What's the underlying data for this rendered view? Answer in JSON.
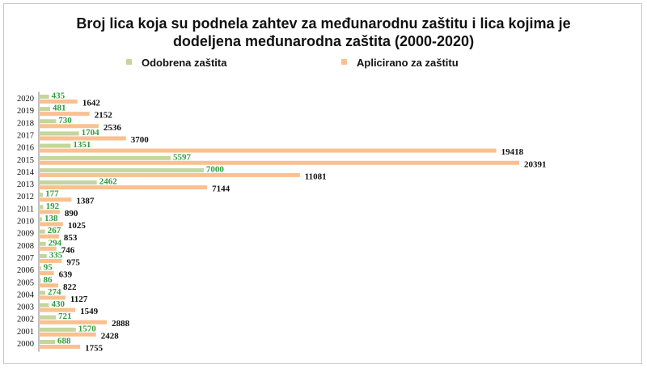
{
  "chart_data": {
    "type": "bar",
    "orientation": "horizontal",
    "title_line1": "Broj lica koja su podnela zahtev za međunarodnu zaštitu i lica kojima je",
    "title_line2": "dodeljena međunarodna zaštita (2000-2020)",
    "categories": [
      "2020",
      "2019",
      "2018",
      "2017",
      "2016",
      "2015",
      "2014",
      "2013",
      "2012",
      "2011",
      "2010",
      "2009",
      "2008",
      "2007",
      "2006",
      "2005",
      "2004",
      "2003",
      "2002",
      "2001",
      "2000"
    ],
    "series": [
      {
        "name": "Odobrena zaštita",
        "color": "#c3d69b",
        "label_color": "#2e9e3e",
        "values": [
          435,
          481,
          730,
          1704,
          1351,
          5597,
          7000,
          2462,
          177,
          192,
          138,
          267,
          294,
          335,
          95,
          86,
          274,
          430,
          721,
          1570,
          688
        ]
      },
      {
        "name": "Aplicirano za zaštitu",
        "color": "#fac090",
        "label_color": "#111111",
        "values": [
          1642,
          2152,
          2536,
          3700,
          19418,
          20391,
          11081,
          7144,
          1387,
          890,
          1025,
          853,
          746,
          975,
          639,
          822,
          1127,
          1549,
          2888,
          2428,
          1755
        ]
      }
    ],
    "xlim": [
      0,
      20391
    ],
    "legend_position": "top",
    "grid": false
  }
}
